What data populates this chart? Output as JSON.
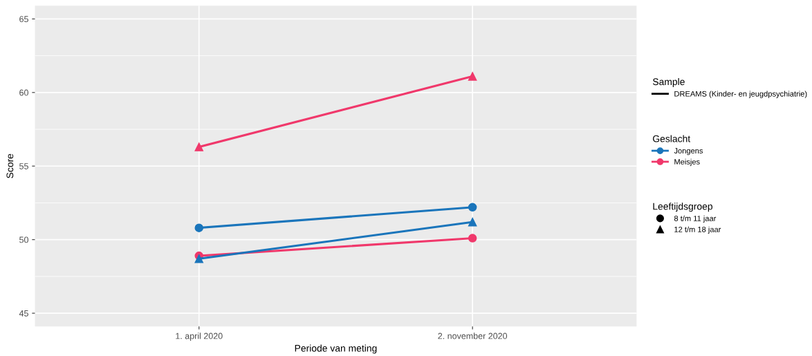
{
  "chart_data": {
    "type": "line",
    "xlabel": "Periode van meting",
    "ylabel": "Score",
    "categories": [
      "1. april 2020",
      "2. november 2020"
    ],
    "series": [
      {
        "name": "Jongens",
        "color": "#1a75bb",
        "marker": "circle",
        "values": [
          50.8,
          52.2
        ]
      },
      {
        "name": "Meisjes",
        "color": "#f0386b",
        "marker": "circle",
        "values": [
          48.9,
          50.1
        ]
      },
      {
        "name": null,
        "color": "#1a75bb",
        "marker": "triangle",
        "values": [
          48.7,
          51.2
        ]
      },
      {
        "name": null,
        "color": "#f0386b",
        "marker": "triangle",
        "values": [
          56.3,
          61.1
        ]
      }
    ],
    "ylim": [
      44.1,
      65.9
    ],
    "yticks": [
      45,
      {
        "value": 47.5,
        "label": null
      },
      50,
      {
        "value": 52.5,
        "label": null
      },
      55,
      {
        "value": 57.5,
        "label": null
      },
      60,
      {
        "value": 62.5,
        "label": null
      },
      65
    ],
    "grid": true,
    "legend": "right",
    "line_style": "solid",
    "legend_title": [
      "Sample",
      "Geslacht",
      "Leeftijdsgroep"
    ],
    "annotations": [
      "DREAMS (Kinder- en jeugdpsychiatrie)",
      "8 t/m 11 jaar",
      "12 t/m 18 jaar"
    ]
  }
}
